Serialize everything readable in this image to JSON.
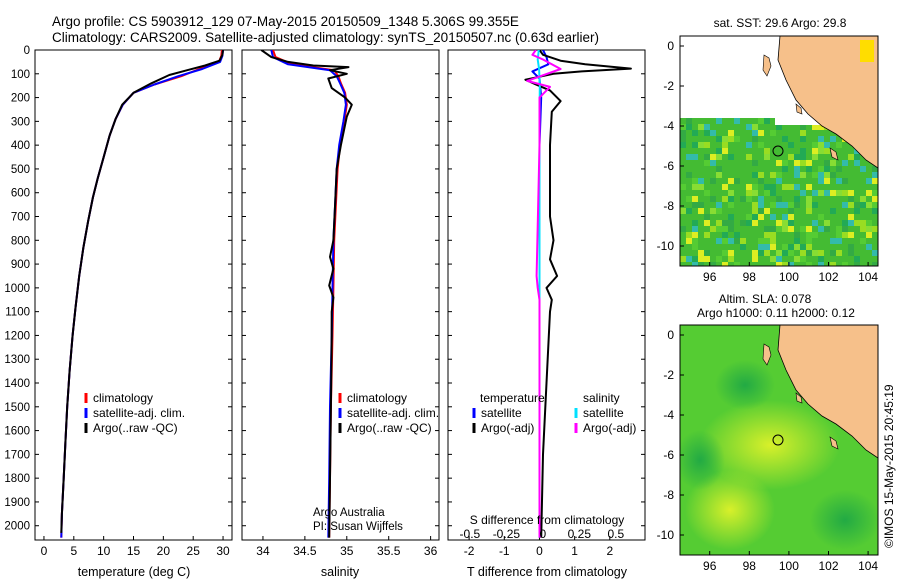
{
  "header": {
    "line1": "Argo profile: CS 5903912_129 07-May-2015 20150509_1348 5.306S 99.355E",
    "line2": "Climatology: CARS2009. Satellite-adjusted climatology: synTS_20150507.nc (0.63d earlier)"
  },
  "depth_axis": {
    "ticks": [
      0,
      100,
      200,
      300,
      400,
      500,
      600,
      700,
      800,
      900,
      1000,
      1100,
      1200,
      1300,
      1400,
      1500,
      1600,
      1700,
      1800,
      1900,
      2000
    ],
    "ylim": [
      0,
      2060
    ]
  },
  "chart_data": [
    {
      "type": "line",
      "id": "temperature",
      "xlabel": "temperature (deg C)",
      "xlim": [
        -1.5,
        31.5
      ],
      "ylim": [
        0,
        2060
      ],
      "xticks": [
        0,
        5,
        10,
        15,
        20,
        25,
        30
      ],
      "xtick_labels": [
        "0",
        "5",
        "10",
        "15",
        "20",
        "25",
        "30"
      ],
      "legend": {
        "placement": "lower-left",
        "entries": [
          {
            "label": "climatology",
            "color": "#ff0000"
          },
          {
            "label": "satellite-adj. clim.",
            "color": "#0000ff"
          },
          {
            "label": "Argo(..raw -QC)",
            "color": "#000000"
          }
        ]
      },
      "series": [
        {
          "name": "climatology",
          "color": "#ff0000",
          "points": [
            [
              29.8,
              0
            ],
            [
              29.7,
              25
            ],
            [
              29.3,
              50
            ],
            [
              26,
              80
            ],
            [
              23,
              110
            ],
            [
              18.5,
              145
            ],
            [
              15,
              180
            ],
            [
              13.2,
              230
            ],
            [
              12,
              290
            ],
            [
              11,
              360
            ],
            [
              10,
              450
            ],
            [
              9,
              540
            ],
            [
              8.2,
              620
            ],
            [
              7.4,
              720
            ],
            [
              6.6,
              830
            ],
            [
              5.9,
              950
            ],
            [
              5.3,
              1080
            ],
            [
              4.8,
              1200
            ],
            [
              4.3,
              1350
            ],
            [
              3.9,
              1500
            ],
            [
              3.6,
              1650
            ],
            [
              3.3,
              1800
            ],
            [
              3.0,
              1950
            ],
            [
              2.9,
              2050
            ]
          ]
        },
        {
          "name": "satellite-adj. clim.",
          "color": "#0000ff",
          "points": [
            [
              30.0,
              0
            ],
            [
              29.9,
              25
            ],
            [
              29.5,
              50
            ],
            [
              26.5,
              80
            ],
            [
              22.5,
              110
            ],
            [
              18.5,
              145
            ],
            [
              15,
              180
            ],
            [
              13.2,
              230
            ],
            [
              12,
              290
            ],
            [
              11,
              360
            ],
            [
              10,
              450
            ],
            [
              9,
              540
            ],
            [
              8.2,
              620
            ],
            [
              7.4,
              720
            ],
            [
              6.6,
              830
            ],
            [
              5.9,
              950
            ],
            [
              5.3,
              1080
            ],
            [
              4.8,
              1200
            ],
            [
              4.3,
              1350
            ],
            [
              3.9,
              1500
            ],
            [
              3.6,
              1650
            ],
            [
              3.3,
              1800
            ],
            [
              3.0,
              1950
            ],
            [
              2.9,
              2050
            ]
          ]
        },
        {
          "name": "Argo(..raw -QC)",
          "color": "#000000",
          "points": [
            [
              30.0,
              0
            ],
            [
              29.9,
              20
            ],
            [
              29.4,
              45
            ],
            [
              27,
              65
            ],
            [
              24,
              85
            ],
            [
              21,
              105
            ],
            [
              18,
              140
            ],
            [
              15,
              180
            ],
            [
              13.1,
              230
            ],
            [
              12,
              290
            ],
            [
              11,
              360
            ],
            [
              10,
              450
            ],
            [
              9,
              540
            ],
            [
              8.2,
              620
            ],
            [
              7.4,
              720
            ],
            [
              6.6,
              830
            ],
            [
              5.9,
              950
            ],
            [
              5.3,
              1080
            ],
            [
              4.8,
              1200
            ],
            [
              4.3,
              1350
            ],
            [
              3.9,
              1500
            ],
            [
              3.6,
              1650
            ],
            [
              3.3,
              1800
            ],
            [
              3.0,
              1950
            ],
            [
              2.9,
              2030
            ]
          ]
        }
      ]
    },
    {
      "type": "line",
      "id": "salinity",
      "xlabel": "salinity",
      "xlim": [
        33.75,
        36.1
      ],
      "ylim": [
        0,
        2060
      ],
      "xticks": [
        34,
        34.5,
        35,
        35.5,
        36
      ],
      "xtick_labels": [
        "34",
        "34.5",
        "35",
        "35.5",
        "36"
      ],
      "annotation": [
        "Argo Australia",
        "PI: Susan Wijffels"
      ],
      "legend": {
        "placement": "lower-right",
        "entries": [
          {
            "label": "climatology",
            "color": "#ff0000"
          },
          {
            "label": "satellite-adj. clim.",
            "color": "#0000ff"
          },
          {
            "label": "Argo(..raw -QC)",
            "color": "#000000"
          }
        ]
      },
      "series": [
        {
          "name": "climatology",
          "color": "#ff0000",
          "points": [
            [
              34.12,
              0
            ],
            [
              34.15,
              30
            ],
            [
              34.35,
              60
            ],
            [
              34.85,
              85
            ],
            [
              34.9,
              110
            ],
            [
              34.93,
              140
            ],
            [
              34.98,
              180
            ],
            [
              35.0,
              230
            ],
            [
              34.97,
              300
            ],
            [
              34.92,
              400
            ],
            [
              34.89,
              500
            ],
            [
              34.87,
              650
            ],
            [
              34.85,
              800
            ],
            [
              34.84,
              1000
            ],
            [
              34.83,
              1200
            ],
            [
              34.81,
              1500
            ],
            [
              34.8,
              1800
            ],
            [
              34.79,
              2050
            ]
          ]
        },
        {
          "name": "satellite-adj. clim.",
          "color": "#0000ff",
          "points": [
            [
              34.1,
              0
            ],
            [
              34.12,
              30
            ],
            [
              34.3,
              60
            ],
            [
              34.8,
              85
            ],
            [
              34.88,
              110
            ],
            [
              34.92,
              140
            ],
            [
              34.97,
              180
            ],
            [
              34.99,
              230
            ],
            [
              34.96,
              300
            ],
            [
              34.91,
              400
            ],
            [
              34.88,
              500
            ],
            [
              34.86,
              650
            ],
            [
              34.84,
              800
            ],
            [
              34.83,
              1000
            ],
            [
              34.82,
              1200
            ],
            [
              34.8,
              1500
            ],
            [
              34.79,
              1800
            ],
            [
              34.78,
              2050
            ]
          ]
        },
        {
          "name": "Argo(..raw -QC)",
          "color": "#000000",
          "points": [
            [
              33.98,
              0
            ],
            [
              34.1,
              30
            ],
            [
              34.3,
              50
            ],
            [
              34.6,
              65
            ],
            [
              35.02,
              72
            ],
            [
              34.8,
              85
            ],
            [
              35.0,
              100
            ],
            [
              34.78,
              120
            ],
            [
              34.82,
              160
            ],
            [
              34.98,
              200
            ],
            [
              35.06,
              230
            ],
            [
              35.0,
              280
            ],
            [
              34.93,
              400
            ],
            [
              34.88,
              500
            ],
            [
              34.86,
              650
            ],
            [
              34.84,
              800
            ],
            [
              34.8,
              870
            ],
            [
              34.84,
              920
            ],
            [
              34.79,
              990
            ],
            [
              34.84,
              1040
            ],
            [
              34.82,
              1100
            ],
            [
              34.82,
              1200
            ],
            [
              34.81,
              1500
            ],
            [
              34.8,
              1800
            ],
            [
              34.79,
              2050
            ]
          ]
        }
      ]
    },
    {
      "type": "line",
      "id": "difference",
      "xlabel": "T difference from climatology",
      "secondary_xlabel": "S difference from climatology",
      "xlim": [
        -2.6,
        3.0
      ],
      "ylim": [
        0,
        2060
      ],
      "xticks": [
        -2,
        -1,
        0,
        1,
        2
      ],
      "xtick_labels": [
        "-2",
        "-1",
        "0",
        "1",
        "2"
      ],
      "secondary_xticks": [
        -0.5,
        -0.25,
        0,
        0.25,
        0.5
      ],
      "secondary_xtick_labels": [
        "-0.5",
        "-0.25",
        "0",
        "0.25",
        "0.5"
      ],
      "legend": {
        "placement": "lower-center",
        "entries": [
          {
            "group": "temperature",
            "label": "satellite",
            "color": "#0000ff"
          },
          {
            "group": "temperature",
            "label": "Argo(-adj)",
            "color": "#000000"
          },
          {
            "group": "salinity",
            "label": "satellite",
            "color": "#00e0ff"
          },
          {
            "group": "salinity",
            "label": "Argo(-adj)",
            "color": "#ff00ff"
          }
        ]
      },
      "series": [
        {
          "name": "temperature satellite",
          "color": "#0000ff",
          "points": [
            [
              0.1,
              0
            ],
            [
              0.2,
              30
            ],
            [
              0.25,
              60
            ],
            [
              -0.2,
              90
            ],
            [
              0,
              120
            ],
            [
              0.05,
              200
            ],
            [
              0,
              400
            ],
            [
              0,
              1000
            ],
            [
              0,
              2050
            ]
          ]
        },
        {
          "name": "temperature Argo(-adj)",
          "color": "#000000",
          "points": [
            [
              0,
              0
            ],
            [
              0.1,
              20
            ],
            [
              0.6,
              45
            ],
            [
              1.3,
              60
            ],
            [
              2.6,
              78
            ],
            [
              1.2,
              90
            ],
            [
              0.4,
              100
            ],
            [
              -0.4,
              125
            ],
            [
              -0.1,
              145
            ],
            [
              0.3,
              170
            ],
            [
              0.6,
              215
            ],
            [
              0.35,
              260
            ],
            [
              0.3,
              400
            ],
            [
              0.3,
              700
            ],
            [
              0.4,
              800
            ],
            [
              0.3,
              880
            ],
            [
              0.5,
              950
            ],
            [
              0.2,
              1000
            ],
            [
              0.35,
              1050
            ],
            [
              0.3,
              1100
            ],
            [
              0.2,
              1400
            ],
            [
              0.1,
              1700
            ],
            [
              0.05,
              2050
            ]
          ]
        },
        {
          "name": "salinity satellite",
          "color": "#00e0ff",
          "points": [
            [
              -0.02,
              0
            ],
            [
              -0.05,
              40
            ],
            [
              -0.01,
              80
            ],
            [
              0.01,
              150
            ],
            [
              0,
              300
            ],
            [
              0,
              1000
            ],
            [
              0,
              2050
            ]
          ]
        },
        {
          "name": "salinity Argo(-adj)",
          "color": "#ff00ff",
          "points": [
            [
              -0.1,
              0
            ],
            [
              -0.2,
              20
            ],
            [
              0.1,
              40
            ],
            [
              0.6,
              80
            ],
            [
              -0.35,
              130
            ],
            [
              0.3,
              155
            ],
            [
              0,
              200
            ],
            [
              0,
              400
            ],
            [
              -0.08,
              950
            ],
            [
              -0.05,
              1000
            ],
            [
              0,
              1050
            ],
            [
              0,
              2050
            ]
          ]
        }
      ]
    }
  ],
  "maps": {
    "sst": {
      "title": "sat. SST: 29.6  Argo: 29.8",
      "xticks": [
        96,
        98,
        100,
        102,
        104
      ],
      "yticks": [
        0,
        -2,
        -4,
        -6,
        -8,
        -10
      ],
      "xlim": [
        94.5,
        104.5
      ],
      "ylim": [
        -11,
        0.5
      ],
      "argo_position": [
        99.355,
        -5.306
      ],
      "colors": {
        "land": "#f6c08a",
        "field": "#33bb33",
        "missing": "#ffffff"
      }
    },
    "sla": {
      "title_line1": "Altim. SLA: 0.078",
      "title_line2": "Argo h1000: 0.11 h2000: 0.12",
      "xticks": [
        96,
        98,
        100,
        102,
        104
      ],
      "yticks": [
        0,
        -2,
        -4,
        -6,
        -8,
        -10
      ],
      "xlim": [
        94.5,
        104.5
      ],
      "ylim": [
        -11,
        0.5
      ],
      "argo_position": [
        99.355,
        -5.306
      ],
      "colors": {
        "land": "#f6c08a",
        "field": "#33cc33",
        "high": "#ccee22"
      }
    }
  },
  "footer": {
    "credit": "©IMOS 15-May-2015 20:45:19"
  }
}
